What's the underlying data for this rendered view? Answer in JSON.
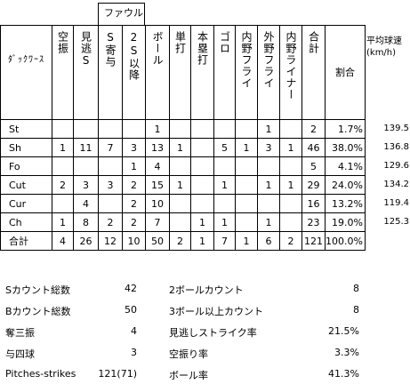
{
  "header": {
    "group_label": "ファウル",
    "col_pitch": "ﾀﾞｯｸﾜｰｽ",
    "cols": [
      "空振",
      "見逃S",
      "S寄与",
      "2S以降",
      "ボール",
      "単打",
      "本塁打",
      "ゴロ",
      "内野フライ",
      "外野フライ",
      "内野ライナー",
      "合計",
      "割合"
    ],
    "speed_label": "平均球速(km/h)"
  },
  "rows": [
    {
      "pitch": "St",
      "cells": [
        "",
        "",
        "",
        "",
        "1",
        "",
        "",
        "",
        "",
        "1",
        "",
        "2",
        "1.7%"
      ],
      "speed": "139.5"
    },
    {
      "pitch": "Sh",
      "cells": [
        "1",
        "11",
        "7",
        "3",
        "13",
        "1",
        "",
        "5",
        "1",
        "3",
        "1",
        "46",
        "38.0%"
      ],
      "speed": "136.8"
    },
    {
      "pitch": "Fo",
      "cells": [
        "",
        "",
        "",
        "1",
        "4",
        "",
        "",
        "",
        "",
        "",
        "",
        "5",
        "4.1%"
      ],
      "speed": "129.6"
    },
    {
      "pitch": "Cut",
      "cells": [
        "2",
        "3",
        "3",
        "2",
        "15",
        "1",
        "",
        "1",
        "",
        "1",
        "1",
        "29",
        "24.0%"
      ],
      "speed": "134.2"
    },
    {
      "pitch": "Cur",
      "cells": [
        "",
        "4",
        "",
        "2",
        "10",
        "",
        "",
        "",
        "",
        "",
        "",
        "16",
        "13.2%"
      ],
      "speed": "119.4"
    },
    {
      "pitch": "Ch",
      "cells": [
        "1",
        "8",
        "2",
        "2",
        "7",
        "",
        "1",
        "1",
        "",
        "1",
        "",
        "23",
        "19.0%"
      ],
      "speed": "125.3"
    },
    {
      "pitch": "合計",
      "cells": [
        "4",
        "26",
        "12",
        "10",
        "50",
        "2",
        "1",
        "7",
        "1",
        "6",
        "2",
        "121",
        "100.0%"
      ],
      "speed": ""
    }
  ],
  "summary_left": [
    {
      "label": "Sカウント総数",
      "value": "42"
    },
    {
      "label": "Bカウント総数",
      "value": "50"
    },
    {
      "label": "奪三振",
      "value": "4"
    },
    {
      "label": "与四球",
      "value": "3"
    },
    {
      "label": "Pitches-strikes",
      "value": "121(71)"
    }
  ],
  "summary_right": [
    {
      "label": "2ボールカウント",
      "value": "8"
    },
    {
      "label": "3ボール以上カウント",
      "value": "8"
    },
    {
      "label": "見逃しストライク率",
      "value": "21.5%"
    },
    {
      "label": "空振り率",
      "value": "3.3%"
    },
    {
      "label": "ボール率",
      "value": "41.3%"
    }
  ]
}
